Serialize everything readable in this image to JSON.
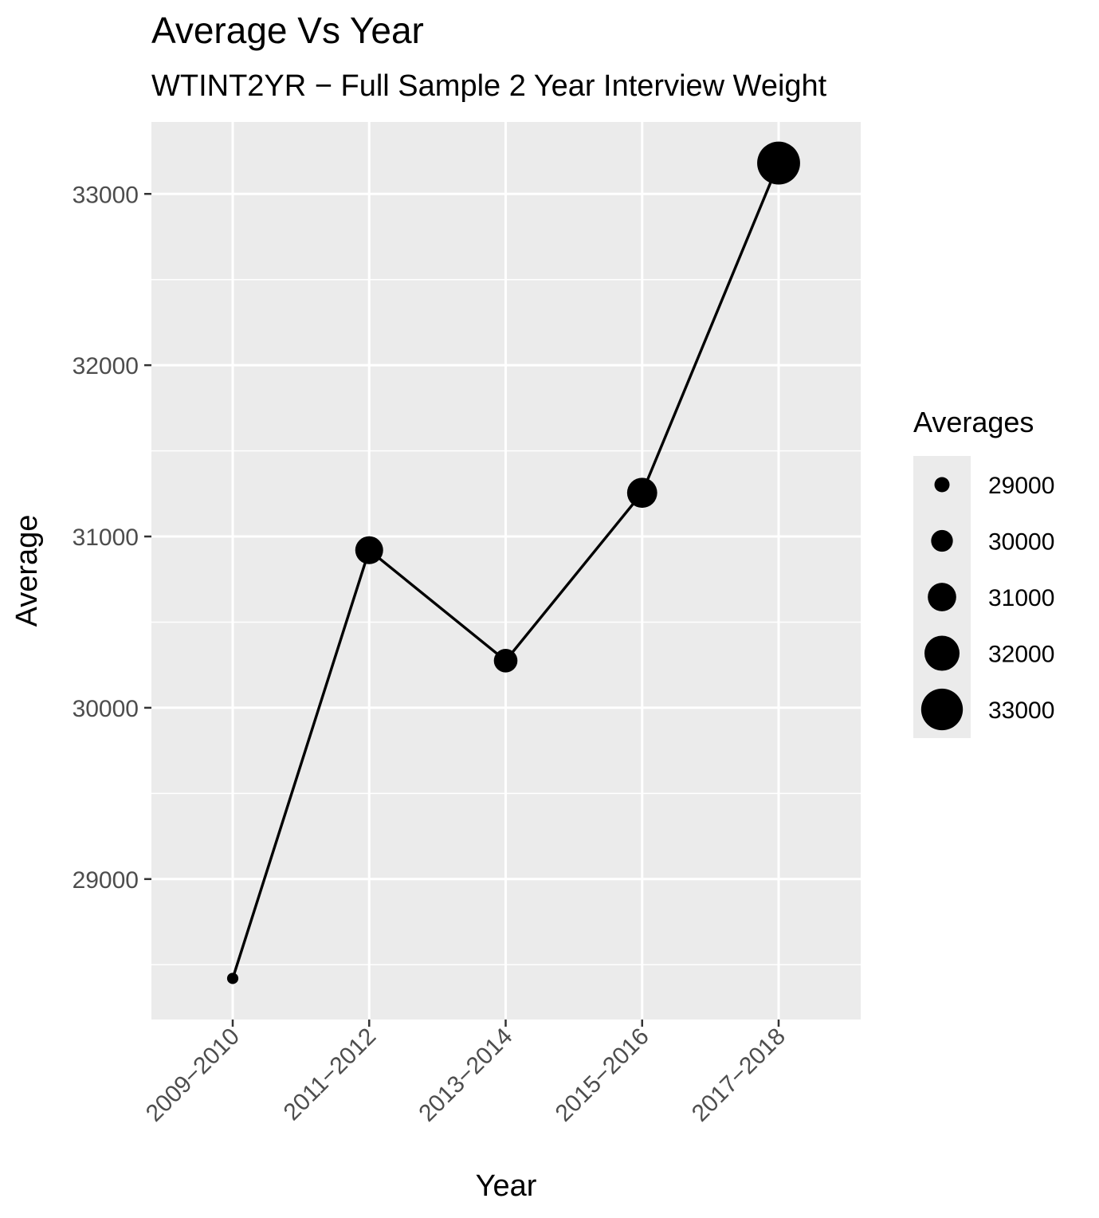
{
  "chart_data": {
    "type": "line",
    "title": "Average Vs Year",
    "subtitle": "WTINT2YR − Full Sample 2 Year Interview Weight",
    "xlabel": "Year",
    "ylabel": "Average",
    "categories": [
      "2009−2010",
      "2011−2012",
      "2013−2014",
      "2015−2016",
      "2017−2018"
    ],
    "values": [
      28420,
      30920,
      30275,
      31255,
      33180
    ],
    "ylim": [
      28180,
      33420
    ],
    "yticks": [
      29000,
      30000,
      31000,
      32000,
      33000
    ],
    "ytick_labels": [
      "29000",
      "30000",
      "31000",
      "32000",
      "33000"
    ],
    "grid": true,
    "background_color": "#ebebeb",
    "line_color": "#000000",
    "point_color": "#000000",
    "size_legend": {
      "title": "Averages",
      "placement": "right",
      "levels": [
        29000,
        30000,
        31000,
        32000,
        33000
      ],
      "labels": [
        "29000",
        "30000",
        "31000",
        "32000",
        "33000"
      ]
    }
  }
}
